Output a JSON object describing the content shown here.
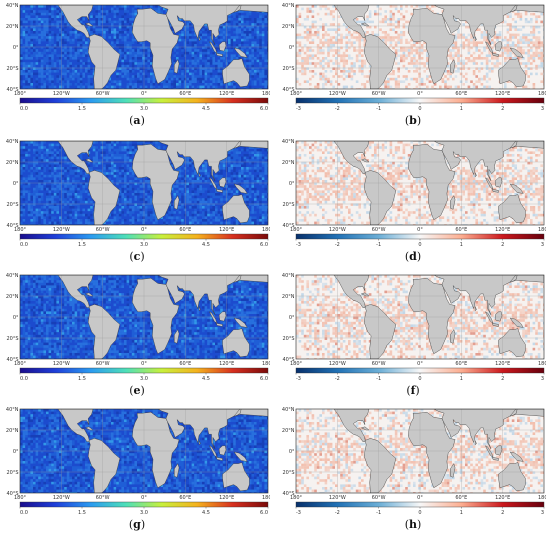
{
  "panels": [
    {
      "id": "a",
      "label_open": "(",
      "letter": "a",
      "label_close": ")",
      "type": "magnitude",
      "lat_labels": [
        "40°N",
        "20°N",
        "0°",
        "20°S",
        "40°S"
      ],
      "lon_labels": [
        "180°",
        "120°W",
        "60°W",
        "0°",
        "60°E",
        "120°E",
        "180°"
      ],
      "cbar_ticks": [
        "0.0",
        "1.5",
        "3.0",
        "4.5",
        "6.0"
      ]
    },
    {
      "id": "b",
      "label_open": "(",
      "letter": "b",
      "label_close": ")",
      "type": "difference",
      "lat_labels": [
        "40°N",
        "20°N",
        "0°",
        "20°S",
        "40°S"
      ],
      "lon_labels": [
        "180°",
        "120°W",
        "60°W",
        "0°",
        "60°E",
        "120°E",
        "180°"
      ],
      "cbar_ticks": [
        "-3",
        "-2",
        "-1",
        "0",
        "1",
        "2",
        "3"
      ]
    },
    {
      "id": "c",
      "label_open": "(",
      "letter": "c",
      "label_close": ")",
      "type": "magnitude",
      "lat_labels": [
        "40°N",
        "20°N",
        "0°",
        "20°S",
        "40°S"
      ],
      "lon_labels": [
        "180°",
        "120°W",
        "60°W",
        "0°",
        "60°E",
        "120°E",
        "180°"
      ],
      "cbar_ticks": [
        "0.0",
        "1.5",
        "3.0",
        "4.5",
        "6.0"
      ]
    },
    {
      "id": "d",
      "label_open": "(",
      "letter": "d",
      "label_close": ")",
      "type": "difference",
      "lat_labels": [
        "40°N",
        "20°N",
        "0°",
        "20°S",
        "40°S"
      ],
      "lon_labels": [
        "180°",
        "120°W",
        "60°W",
        "0°",
        "60°E",
        "120°E",
        "180°"
      ],
      "cbar_ticks": [
        "-3",
        "-2",
        "-1",
        "0",
        "1",
        "2",
        "3"
      ]
    },
    {
      "id": "e",
      "label_open": "(",
      "letter": "e",
      "label_close": ")",
      "type": "magnitude",
      "lat_labels": [
        "40°N",
        "20°N",
        "0°",
        "20°S",
        "40°S"
      ],
      "lon_labels": [
        "180°",
        "120°W",
        "60°W",
        "0°",
        "60°E",
        "120°E",
        "180°"
      ],
      "cbar_ticks": [
        "0.0",
        "1.5",
        "3.0",
        "4.5",
        "6.0"
      ]
    },
    {
      "id": "f",
      "label_open": "(",
      "letter": "f",
      "label_close": ")",
      "type": "difference",
      "lat_labels": [
        "40°N",
        "20°N",
        "0°",
        "20°S",
        "40°S"
      ],
      "lon_labels": [
        "180°",
        "120°W",
        "60°W",
        "0°",
        "60°E",
        "120°E",
        "180°"
      ],
      "cbar_ticks": [
        "-3",
        "-2",
        "-1",
        "0",
        "1",
        "2",
        "3"
      ]
    },
    {
      "id": "g",
      "label_open": "(",
      "letter": "g",
      "label_close": ")",
      "type": "magnitude",
      "lat_labels": [
        "40°N",
        "20°N",
        "0°",
        "20°S",
        "40°S"
      ],
      "lon_labels": [
        "180°",
        "120°W",
        "60°W",
        "0°",
        "60°E",
        "120°E",
        "180°"
      ],
      "cbar_ticks": [
        "0.0",
        "1.5",
        "3.0",
        "4.5",
        "6.0"
      ]
    },
    {
      "id": "h",
      "label_open": "(",
      "letter": "h",
      "label_close": ")",
      "type": "difference",
      "lat_labels": [
        "40°N",
        "20°N",
        "0°",
        "20°S",
        "40°S"
      ],
      "lon_labels": [
        "180°",
        "120°W",
        "60°W",
        "0°",
        "60°E",
        "120°E",
        "180°"
      ],
      "cbar_ticks": [
        "-3",
        "-2",
        "-1",
        "0",
        "1",
        "2",
        "3"
      ]
    }
  ],
  "colors": {
    "land": "#c8c8c8",
    "magnitude_ocean": "#1f5ed6",
    "magnitude_scale": [
      "#1a0d8c",
      "#1f3fd9",
      "#2b9bf0",
      "#4fe0b8",
      "#c8f03c",
      "#f5b21e",
      "#d7301f",
      "#7a0a0a"
    ],
    "difference_scale": [
      "#08306b",
      "#2171b5",
      "#6baed6",
      "#f7f7f7",
      "#fcae91",
      "#cb181d",
      "#67000d"
    ],
    "grid": "#9a9a9a"
  }
}
